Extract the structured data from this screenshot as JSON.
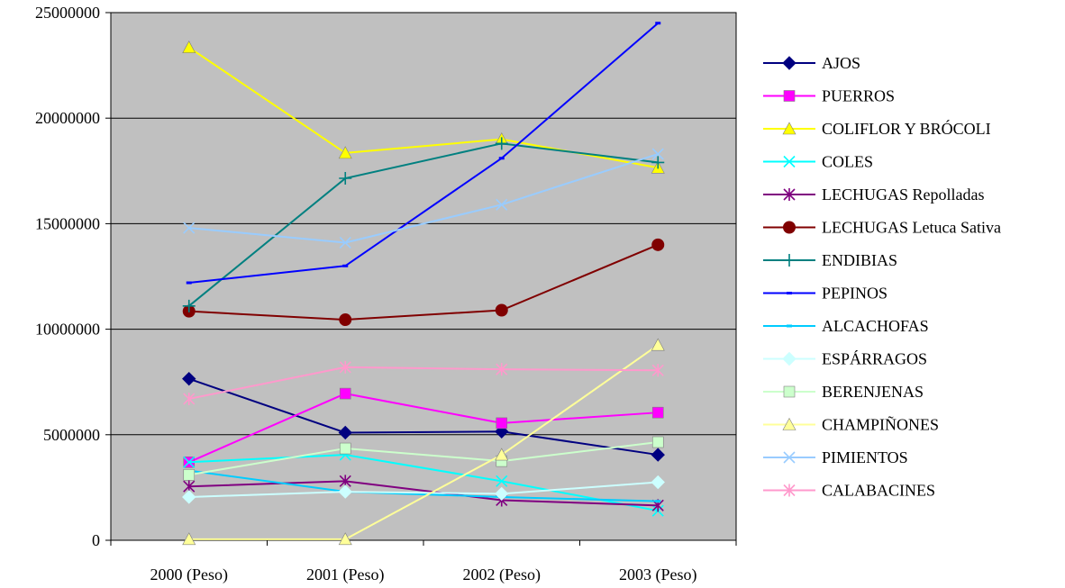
{
  "chart_data": {
    "type": "line",
    "title": "",
    "xlabel": "",
    "ylabel": "",
    "categories": [
      "2000 (Peso)",
      "2001 (Peso)",
      "2002 (Peso)",
      "2003 (Peso)"
    ],
    "ylim": [
      0,
      25000000
    ],
    "yticks": [
      "0",
      "5000000",
      "10000000",
      "15000000",
      "20000000",
      "25000000"
    ],
    "grid": true,
    "plot_background": "#c0c0c0",
    "legend_position": "right",
    "series": [
      {
        "name": "AJOS",
        "color": "#000080",
        "marker": "diamond",
        "values": [
          7650000,
          5100000,
          5150000,
          4050000
        ]
      },
      {
        "name": "PUERROS",
        "color": "#ff00ff",
        "marker": "square",
        "values": [
          3700000,
          6950000,
          5550000,
          6050000
        ]
      },
      {
        "name": "COLIFLOR Y BRÓCOLI",
        "color": "#ffff00",
        "marker": "triangle",
        "values": [
          23350000,
          18350000,
          19000000,
          17650000
        ]
      },
      {
        "name": "COLES",
        "color": "#00ffff",
        "marker": "x",
        "values": [
          3700000,
          4050000,
          2800000,
          1400000
        ]
      },
      {
        "name": "LECHUGAS Repolladas",
        "color": "#800080",
        "marker": "asterisk",
        "values": [
          2550000,
          2800000,
          1900000,
          1650000
        ]
      },
      {
        "name": "LECHUGAS Letuca Sativa",
        "color": "#800000",
        "marker": "circle",
        "values": [
          10850000,
          10450000,
          10900000,
          14000000
        ]
      },
      {
        "name": "ENDIBIAS",
        "color": "#008080",
        "marker": "plus",
        "values": [
          11100000,
          17150000,
          18800000,
          17900000
        ]
      },
      {
        "name": "PEPINOS",
        "color": "#0000ff",
        "marker": "dash",
        "values": [
          12200000,
          13000000,
          18100000,
          24500000
        ]
      },
      {
        "name": "ALCACHOFAS",
        "color": "#00ccff",
        "marker": "dash",
        "values": [
          3300000,
          2300000,
          2050000,
          1850000
        ]
      },
      {
        "name": "ESPÁRRAGOS",
        "color": "#ccffff",
        "marker": "diamond",
        "values": [
          2050000,
          2300000,
          2200000,
          2750000
        ]
      },
      {
        "name": "BERENJENAS",
        "color": "#ccffcc",
        "marker": "square",
        "values": [
          3100000,
          4350000,
          3750000,
          4650000
        ]
      },
      {
        "name": "CHAMPIÑONES",
        "color": "#ffff99",
        "marker": "triangle",
        "values": [
          50000,
          50000,
          4050000,
          9250000
        ]
      },
      {
        "name": "PIMIENTOS",
        "color": "#99ccff",
        "marker": "x",
        "values": [
          14800000,
          14100000,
          15900000,
          18300000
        ]
      },
      {
        "name": "CALABACINES",
        "color": "#ff99cc",
        "marker": "asterisk",
        "values": [
          6700000,
          8200000,
          8100000,
          8050000
        ]
      }
    ]
  }
}
